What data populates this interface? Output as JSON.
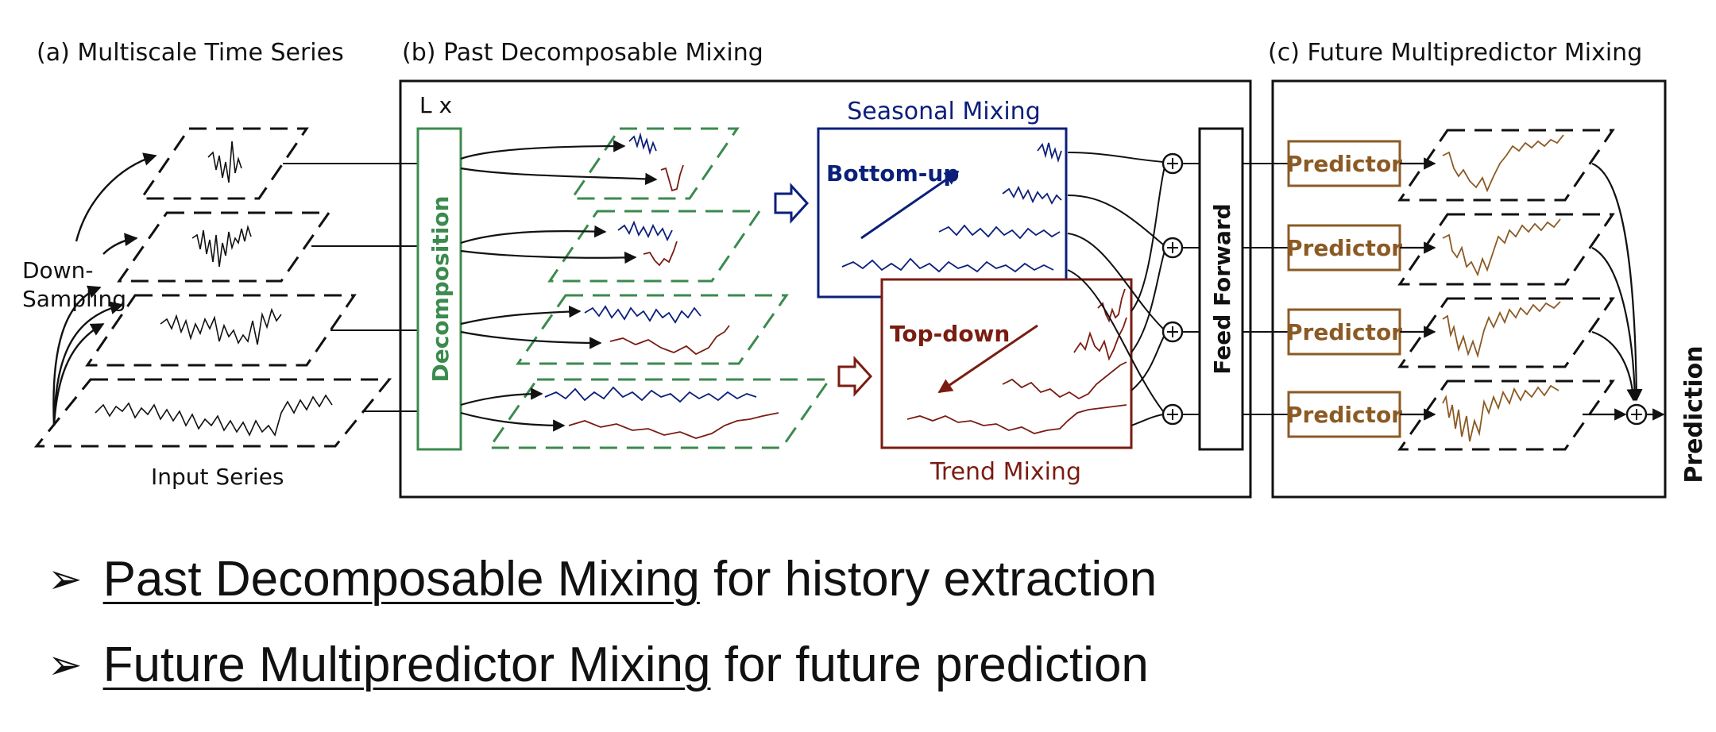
{
  "panels": {
    "a_title": "(a) Multiscale Time Series",
    "b_title": "(b) Past Decomposable Mixing",
    "c_title": "(c) Future Multipredictor Mixing"
  },
  "labels": {
    "down_sampling_1": "Down-",
    "down_sampling_2": "Sampling",
    "input_series": "Input Series",
    "layer_repeat": "L x",
    "decomposition": "Decomposition",
    "seasonal_mixing": "Seasonal Mixing",
    "bottom_up": "Bottom-up",
    "trend_mixing": "Trend Mixing",
    "top_down": "Top-down",
    "feed_forward": "Feed Forward",
    "prediction": "Prediction",
    "predictors": [
      "Predictor",
      "Predictor",
      "Predictor",
      "Predictor"
    ]
  },
  "colors": {
    "seasonal": "#0b1f7a",
    "trend": "#7a1c12",
    "decomposition": "#3b8a4e",
    "predictor": "#8b5a24"
  },
  "bullets": [
    {
      "emph": "Past Decomposable Mixing",
      "rest": " for history extraction"
    },
    {
      "emph": "Future Multipredictor Mixing",
      "rest": " for future prediction"
    }
  ]
}
